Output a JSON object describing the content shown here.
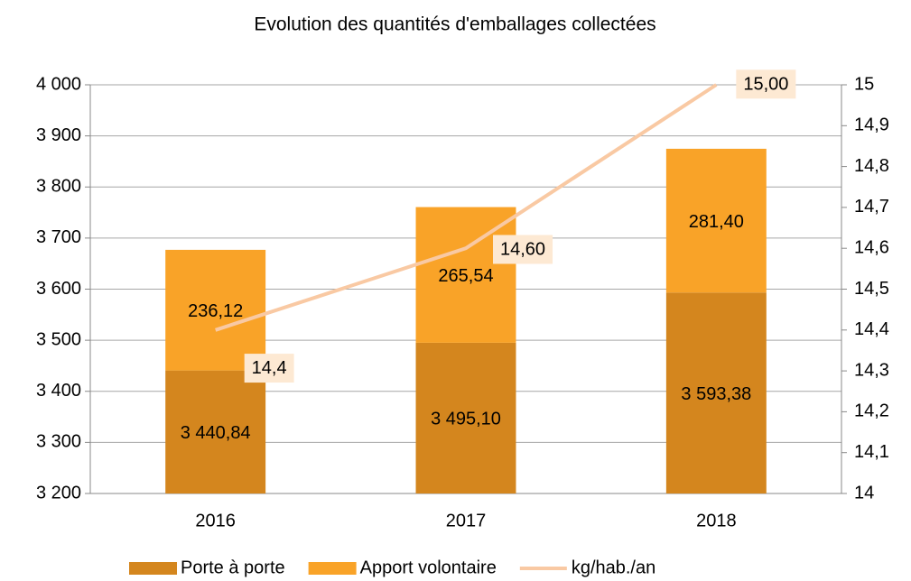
{
  "chart_data": {
    "type": "bar",
    "stacked": true,
    "title": "Evolution des quantités d'emballages collectées",
    "categories": [
      "2016",
      "2017",
      "2018"
    ],
    "series": [
      {
        "name": "Porte à porte",
        "color": "#d4861e",
        "values": [
          3440.84,
          3495.1,
          3593.38
        ],
        "value_labels": [
          "3 440,84",
          "3 495,10",
          "3 593,38"
        ]
      },
      {
        "name": "Apport volontaire",
        "color": "#f9a328",
        "values": [
          236.12,
          265.54,
          281.4
        ],
        "value_labels": [
          "236,12",
          "265,54",
          "281,40"
        ]
      },
      {
        "name": "kg/hab./an",
        "type": "line",
        "axis": "y2",
        "color": "#f9c9a3",
        "values": [
          14.4,
          14.6,
          15.0
        ],
        "value_labels": [
          "14,4",
          "14,60",
          "15,00"
        ]
      }
    ],
    "ylim": [
      3200,
      4000
    ],
    "yticks": [
      {
        "value": 3200,
        "label": "3 200"
      },
      {
        "value": 3300,
        "label": "3 300"
      },
      {
        "value": 3400,
        "label": "3 400"
      },
      {
        "value": 3500,
        "label": "3 500"
      },
      {
        "value": 3600,
        "label": "3 600"
      },
      {
        "value": 3700,
        "label": "3 700"
      },
      {
        "value": 3800,
        "label": "3 800"
      },
      {
        "value": 3900,
        "label": "3 900"
      },
      {
        "value": 4000,
        "label": "4 000"
      }
    ],
    "y2lim": [
      14,
      15
    ],
    "y2ticks": [
      14,
      {
        "value": 14.1,
        "label": "14,1"
      },
      {
        "value": 14.2,
        "label": "14,2"
      },
      {
        "value": 14.3,
        "label": "14,3"
      },
      {
        "value": 14.4,
        "label": "14,4"
      },
      {
        "value": 14.5,
        "label": "14,5"
      },
      {
        "value": 14.6,
        "label": "14,6"
      },
      {
        "value": 14.7,
        "label": "14,7"
      },
      {
        "value": 14.8,
        "label": "14,8"
      },
      {
        "value": 14.9,
        "label": "14,9"
      },
      15
    ],
    "grid": true,
    "legend": "bottom"
  }
}
